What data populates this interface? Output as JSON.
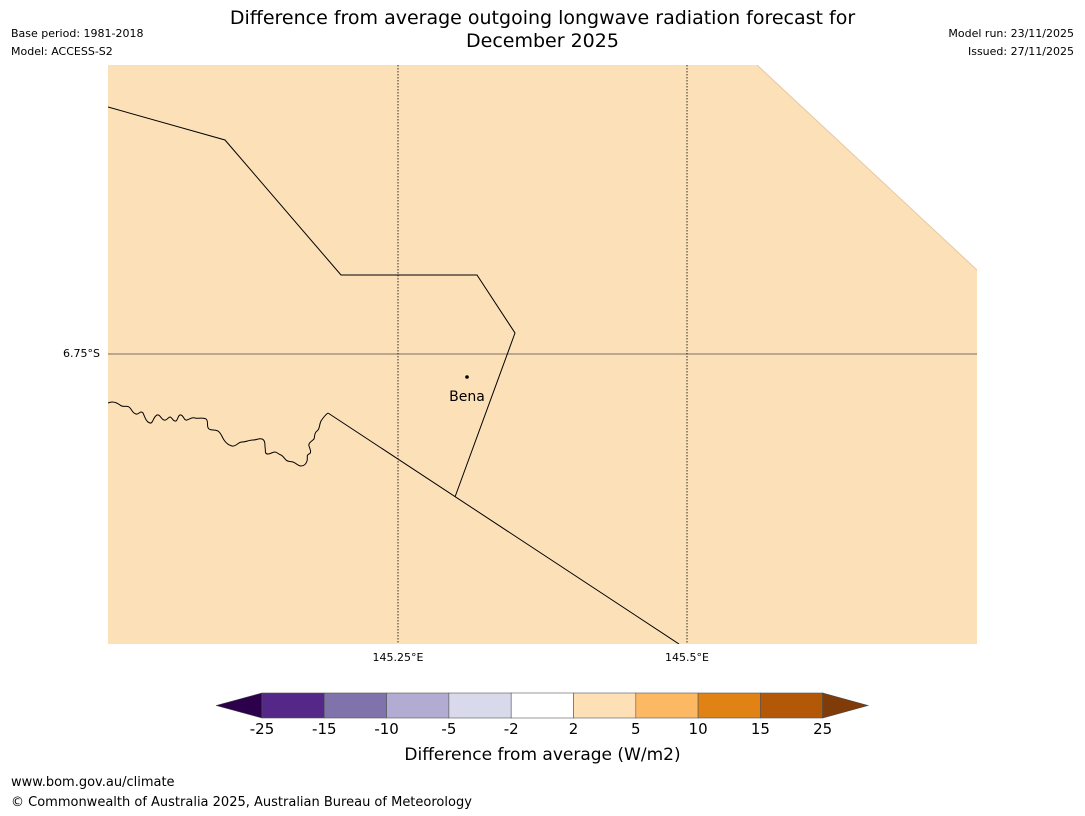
{
  "title": {
    "line1": "Difference from average outgoing longwave radiation forecast for",
    "line2": "December 2025"
  },
  "meta_left": {
    "base_period": "Base period: 1981-2018",
    "model": "Model: ACCESS-S2"
  },
  "meta_right": {
    "model_run": "Model run: 23/11/2025",
    "issued": "Issued: 27/11/2025"
  },
  "map": {
    "lat_label": "6.75°S",
    "lon_labels": [
      "145.25°E",
      "145.5°E"
    ],
    "place_label": "Bena",
    "fill_color": "#fce0b8",
    "fill_category": "2 to 5"
  },
  "colorbar": {
    "ticks": [
      "-25",
      "-15",
      "-10",
      "-5",
      "-2",
      "2",
      "5",
      "10",
      "15",
      "25"
    ],
    "colors": {
      "below_min": "#2d004b",
      "bins": [
        "#542788",
        "#8073ac",
        "#b2abd2",
        "#d8daeb",
        "#ffffff",
        "#fee0b6",
        "#fdb863",
        "#e08214",
        "#b35806"
      ],
      "above_max": "#7f3b08"
    },
    "label": "Difference from average (W/m2)"
  },
  "footer": {
    "url": "www.bom.gov.au/climate",
    "copyright": "© Commonwealth of Australia 2025, Australian Bureau of Meteorology"
  }
}
